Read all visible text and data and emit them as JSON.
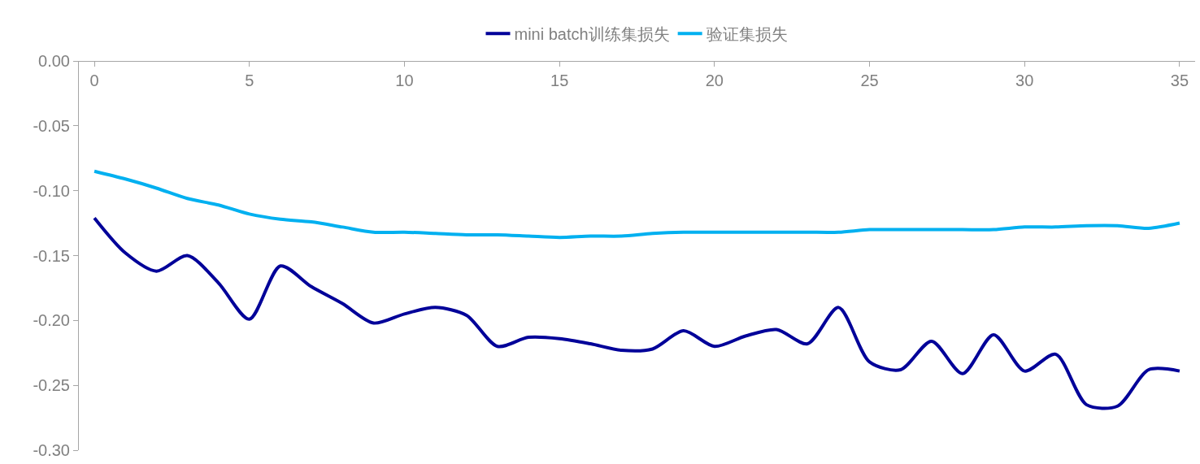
{
  "chart_data": {
    "type": "line",
    "x": [
      0,
      1,
      2,
      3,
      4,
      5,
      6,
      7,
      8,
      9,
      10,
      11,
      12,
      13,
      14,
      15,
      16,
      17,
      18,
      19,
      20,
      21,
      22,
      23,
      24,
      25,
      26,
      27,
      28,
      29,
      30,
      31,
      32,
      33,
      34,
      35
    ],
    "series": [
      {
        "name": "mini batch训练集损失",
        "color": "#000099",
        "values": [
          -0.121,
          -0.148,
          -0.162,
          -0.15,
          -0.171,
          -0.199,
          -0.158,
          -0.174,
          -0.187,
          -0.202,
          -0.195,
          -0.19,
          -0.196,
          -0.22,
          -0.213,
          -0.214,
          -0.218,
          -0.223,
          -0.222,
          -0.208,
          -0.22,
          -0.212,
          -0.207,
          -0.218,
          -0.19,
          -0.232,
          -0.238,
          -0.216,
          -0.241,
          -0.211,
          -0.239,
          -0.226,
          -0.265,
          -0.266,
          -0.238,
          -0.239
        ]
      },
      {
        "name": "验证集损失",
        "color": "#00b0f0",
        "values": [
          -0.085,
          -0.091,
          -0.098,
          -0.106,
          -0.111,
          -0.118,
          -0.122,
          -0.124,
          -0.128,
          -0.132,
          -0.132,
          -0.133,
          -0.134,
          -0.134,
          -0.135,
          -0.136,
          -0.135,
          -0.135,
          -0.133,
          -0.132,
          -0.132,
          -0.132,
          -0.132,
          -0.132,
          -0.132,
          -0.13,
          -0.13,
          -0.13,
          -0.13,
          -0.13,
          -0.128,
          -0.128,
          -0.127,
          -0.127,
          -0.129,
          -0.125
        ]
      }
    ],
    "xlim": [
      -0.5,
      35.5
    ],
    "xticks": [
      0,
      5,
      10,
      15,
      20,
      25,
      30,
      35
    ],
    "ylim": [
      -0.3,
      0
    ],
    "yticks": [
      {
        "value": 0,
        "label": "0.00"
      },
      {
        "value": -0.05,
        "label": "-0.05"
      },
      {
        "value": -0.1,
        "label": "-0.10"
      },
      {
        "value": -0.15,
        "label": "-0.15"
      },
      {
        "value": -0.2,
        "label": "-0.20"
      },
      {
        "value": -0.25,
        "label": "-0.25"
      },
      {
        "value": -0.3,
        "label": "-0.30"
      }
    ],
    "legend": "top",
    "marker": "none",
    "line_style": "solid"
  }
}
